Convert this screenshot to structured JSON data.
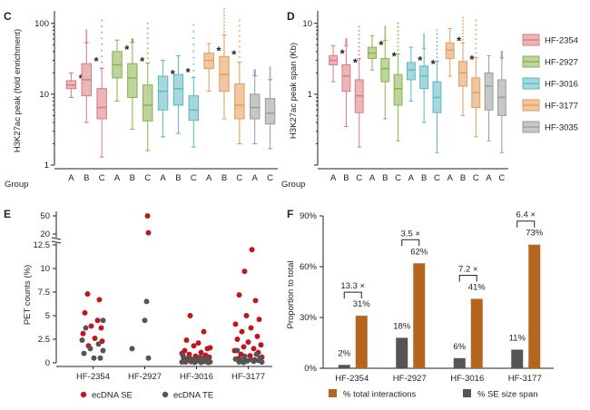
{
  "chart_data": [
    {
      "panel": "C",
      "type": "box",
      "ylabel": "H3K27ac peak (fold enrichment)",
      "yscale": "log",
      "ylim": [
        1,
        150
      ],
      "yticks": [
        {
          "v": 1,
          "label": "1"
        },
        {
          "v": 10,
          "label": "10"
        },
        {
          "v": 100,
          "label": "100"
        }
      ],
      "group_label": "Group",
      "categories": [
        "A",
        "B",
        "C",
        "A",
        "B",
        "C",
        "A",
        "B",
        "C",
        "A",
        "B",
        "C",
        "A",
        "C"
      ],
      "colors": [
        "#d97a80",
        "#d97a80",
        "#d97a80",
        "#88b04b",
        "#88b04b",
        "#88b04b",
        "#5bb7c2",
        "#5bb7c2",
        "#5bb7c2",
        "#e39a55",
        "#e39a55",
        "#e39a55",
        "#9a9a9a",
        "#9a9a9a"
      ],
      "boxes": [
        {
          "min": 9,
          "q1": 12,
          "median": 13.5,
          "q3": 15.5,
          "max": 20,
          "star": true
        },
        {
          "min": 4,
          "q1": 9.5,
          "median": 16,
          "q3": 27,
          "max": 80,
          "star": true
        },
        {
          "min": 1.3,
          "q1": 4.5,
          "median": 6.5,
          "q3": 12,
          "max": 110,
          "star": false
        },
        {
          "min": 8,
          "q1": 17,
          "median": 26,
          "q3": 40,
          "max": 58,
          "star": true
        },
        {
          "min": 3.2,
          "q1": 9,
          "median": 17,
          "q3": 27,
          "max": 60,
          "star": true
        },
        {
          "min": 1.6,
          "q1": 4.2,
          "median": 7,
          "q3": 13.5,
          "max": 100,
          "star": false
        },
        {
          "min": 2.5,
          "q1": 6,
          "median": 11,
          "q3": 18,
          "max": 30,
          "star": true
        },
        {
          "min": 2.8,
          "q1": 7,
          "median": 12,
          "q3": 19,
          "max": 35,
          "star": true
        },
        {
          "min": 1.8,
          "q1": 4.3,
          "median": 6,
          "q3": 9.5,
          "max": 95,
          "star": false
        },
        {
          "min": 11,
          "q1": 23,
          "median": 30,
          "q3": 38,
          "max": 52,
          "star": true
        },
        {
          "min": 4.5,
          "q1": 11,
          "median": 19,
          "q3": 34,
          "max": 160,
          "star": true
        },
        {
          "min": 2,
          "q1": 4.5,
          "median": 7,
          "q3": 14,
          "max": 110,
          "star": false
        },
        {
          "min": 2,
          "q1": 4.5,
          "median": 6.5,
          "q3": 10,
          "max": 22,
          "star": false
        },
        {
          "min": 1.7,
          "q1": 3.8,
          "median": 5.4,
          "q3": 8.7,
          "max": 24,
          "star": false
        }
      ]
    },
    {
      "panel": "D",
      "type": "box",
      "ylabel": "H3K27ac peak span (Kb)",
      "yscale": "log",
      "ylim": [
        0.1,
        15
      ],
      "yticks": [
        {
          "v": 1,
          "label": "1"
        },
        {
          "v": 10,
          "label": "10"
        }
      ],
      "group_label": "Group",
      "categories": [
        "A",
        "B",
        "C",
        "A",
        "B",
        "C",
        "A",
        "B",
        "C",
        "A",
        "B",
        "C",
        "A",
        "C"
      ],
      "colors": [
        "#d97a80",
        "#d97a80",
        "#d97a80",
        "#88b04b",
        "#88b04b",
        "#88b04b",
        "#5bb7c2",
        "#5bb7c2",
        "#5bb7c2",
        "#e39a55",
        "#e39a55",
        "#e39a55",
        "#9a9a9a",
        "#9a9a9a"
      ],
      "boxes": [
        {
          "min": 1.5,
          "q1": 2.6,
          "median": 3,
          "q3": 3.5,
          "max": 5,
          "star": true
        },
        {
          "min": 0.35,
          "q1": 1.1,
          "median": 1.8,
          "q3": 2.6,
          "max": 6,
          "star": true
        },
        {
          "min": 0.18,
          "q1": 0.55,
          "median": 0.95,
          "q3": 1.6,
          "max": 9,
          "star": false
        },
        {
          "min": 2.2,
          "q1": 3.2,
          "median": 3.8,
          "q3": 4.6,
          "max": 7,
          "star": true
        },
        {
          "min": 0.45,
          "q1": 1.5,
          "median": 2.3,
          "q3": 3.2,
          "max": 9,
          "star": true
        },
        {
          "min": 0.22,
          "q1": 0.7,
          "median": 1.2,
          "q3": 1.9,
          "max": 10,
          "star": false
        },
        {
          "min": 0.8,
          "q1": 1.6,
          "median": 2.2,
          "q3": 2.8,
          "max": 5,
          "star": true
        },
        {
          "min": 0.4,
          "q1": 1.2,
          "median": 1.8,
          "q3": 2.5,
          "max": 7,
          "star": true
        },
        {
          "min": 0.15,
          "q1": 0.55,
          "median": 0.9,
          "q3": 1.5,
          "max": 8,
          "star": false
        },
        {
          "min": 1.8,
          "q1": 3.2,
          "median": 4.2,
          "q3": 5.3,
          "max": 9,
          "star": true
        },
        {
          "min": 0.5,
          "q1": 1.3,
          "median": 2,
          "q3": 2.9,
          "max": 12,
          "star": true
        },
        {
          "min": 0.25,
          "q1": 0.65,
          "median": 1.05,
          "q3": 1.7,
          "max": 11,
          "star": false
        },
        {
          "min": 0.22,
          "q1": 0.6,
          "median": 1.3,
          "q3": 2,
          "max": 3.5,
          "star": false
        },
        {
          "min": 0.15,
          "q1": 0.5,
          "median": 0.9,
          "q3": 1.6,
          "max": 4,
          "star": false
        }
      ],
      "legend": [
        {
          "label": "HF-2354",
          "color": "#d97a80"
        },
        {
          "label": "HF-2927",
          "color": "#88b04b"
        },
        {
          "label": "HF-3016",
          "color": "#5bb7c2"
        },
        {
          "label": "HF-3177",
          "color": "#e39a55"
        },
        {
          "label": "HF-3035",
          "color": "#9a9a9a"
        }
      ]
    },
    {
      "panel": "E",
      "type": "scatter",
      "ylabel": "PET counts (%)",
      "categories": [
        "HF-2354",
        "HF-2927",
        "HF-3016",
        "HF-3177"
      ],
      "yticks_lower": [
        {
          "v": 0,
          "label": "0"
        },
        {
          "v": 2.5,
          "label": "2.5"
        },
        {
          "v": 5,
          "label": "5"
        },
        {
          "v": 7.5,
          "label": "7.5"
        },
        {
          "v": 10,
          "label": "10"
        },
        {
          "v": 12.5,
          "label": "12.5"
        }
      ],
      "yticks_upper": [
        {
          "v": 20,
          "label": "20"
        },
        {
          "v": 50,
          "label": "50"
        }
      ],
      "axis_break": [
        12.7,
        15
      ],
      "series": [
        {
          "name": "ecDNA SE",
          "color": "#c0161e",
          "points": [
            {
              "x": 0,
              "y": 7.3,
              "j": -6
            },
            {
              "x": 0,
              "y": 6.7,
              "j": 7
            },
            {
              "x": 0,
              "y": 5.3,
              "j": -9
            },
            {
              "x": 0,
              "y": 4.5,
              "j": 5
            },
            {
              "x": 0,
              "y": 3.9,
              "j": -2
            },
            {
              "x": 0,
              "y": 3.7,
              "j": 9
            },
            {
              "x": 0,
              "y": 3.1,
              "j": -11
            },
            {
              "x": 0,
              "y": 2.6,
              "j": 2
            },
            {
              "x": 0,
              "y": 2.3,
              "j": 10
            },
            {
              "x": 0,
              "y": 1.8,
              "j": -5
            },
            {
              "x": 1,
              "y": 50,
              "j": 3
            },
            {
              "x": 1,
              "y": 22,
              "j": 4
            },
            {
              "x": 2,
              "y": 5,
              "j": -7
            },
            {
              "x": 2,
              "y": 3.3,
              "j": 8
            },
            {
              "x": 2,
              "y": 2.4,
              "j": -11
            },
            {
              "x": 2,
              "y": 2.1,
              "j": 2
            },
            {
              "x": 2,
              "y": 1.8,
              "j": -3
            },
            {
              "x": 2,
              "y": 1.5,
              "j": 12
            },
            {
              "x": 2,
              "y": 1.3,
              "j": -13
            },
            {
              "x": 2,
              "y": 1.1,
              "j": 5
            },
            {
              "x": 2,
              "y": 0.9,
              "j": -8
            },
            {
              "x": 2,
              "y": 0.8,
              "j": 10
            },
            {
              "x": 2,
              "y": 0.7,
              "j": -1
            },
            {
              "x": 2,
              "y": 0.6,
              "j": 14
            },
            {
              "x": 2,
              "y": 0.5,
              "j": -14
            },
            {
              "x": 2,
              "y": 0.45,
              "j": 7
            },
            {
              "x": 2,
              "y": 0.4,
              "j": -6
            },
            {
              "x": 2,
              "y": 0.35,
              "j": 3
            },
            {
              "x": 2,
              "y": 0.3,
              "j": -10
            },
            {
              "x": 2,
              "y": 0.25,
              "j": 11
            },
            {
              "x": 2,
              "y": 0.2,
              "j": -4
            },
            {
              "x": 2,
              "y": 0.15,
              "j": 8
            },
            {
              "x": 2,
              "y": 0.1,
              "j": -12
            },
            {
              "x": 2,
              "y": 1.6,
              "j": 15
            },
            {
              "x": 2,
              "y": 1.0,
              "j": -16
            },
            {
              "x": 2,
              "y": 0.55,
              "j": 0
            },
            {
              "x": 3,
              "y": 12,
              "j": 4
            },
            {
              "x": 3,
              "y": 9.7,
              "j": -4
            },
            {
              "x": 3,
              "y": 7.2,
              "j": -10
            },
            {
              "x": 3,
              "y": 6.6,
              "j": 8
            },
            {
              "x": 3,
              "y": 5,
              "j": -2
            },
            {
              "x": 3,
              "y": 4.6,
              "j": 12
            },
            {
              "x": 3,
              "y": 4.1,
              "j": -14
            },
            {
              "x": 3,
              "y": 3.7,
              "j": 3
            },
            {
              "x": 3,
              "y": 3.3,
              "j": -7
            },
            {
              "x": 3,
              "y": 2.8,
              "j": 10
            },
            {
              "x": 3,
              "y": 2.5,
              "j": -12
            },
            {
              "x": 3,
              "y": 2.2,
              "j": 0
            },
            {
              "x": 3,
              "y": 1.9,
              "j": 14
            },
            {
              "x": 3,
              "y": 1.7,
              "j": -5
            },
            {
              "x": 3,
              "y": 1.5,
              "j": 6
            },
            {
              "x": 3,
              "y": 1.3,
              "j": -15
            },
            {
              "x": 3,
              "y": 1.1,
              "j": 11
            },
            {
              "x": 3,
              "y": 0.9,
              "j": -8
            },
            {
              "x": 3,
              "y": 0.75,
              "j": 2
            },
            {
              "x": 3,
              "y": 0.6,
              "j": 15
            },
            {
              "x": 3,
              "y": 0.45,
              "j": -11
            },
            {
              "x": 3,
              "y": 0.3,
              "j": 7
            },
            {
              "x": 3,
              "y": 0.2,
              "j": -3
            }
          ]
        },
        {
          "name": "ecDNA TE",
          "color": "#555555",
          "points": [
            {
              "x": 0,
              "y": 4.5,
              "j": 11
            },
            {
              "x": 0,
              "y": 3.7,
              "j": -8
            },
            {
              "x": 0,
              "y": 2.4,
              "j": -12
            },
            {
              "x": 0,
              "y": 2.0,
              "j": 6
            },
            {
              "x": 0,
              "y": 1.5,
              "j": -3
            },
            {
              "x": 0,
              "y": 1.3,
              "j": 11
            },
            {
              "x": 0,
              "y": 1.0,
              "j": -10
            },
            {
              "x": 0,
              "y": 0.5,
              "j": 1
            },
            {
              "x": 0,
              "y": 0.5,
              "j": 8
            },
            {
              "x": 1,
              "y": 6.5,
              "j": 2
            },
            {
              "x": 1,
              "y": 4.5,
              "j": 0
            },
            {
              "x": 1,
              "y": 1.5,
              "j": -14
            },
            {
              "x": 1,
              "y": 0.5,
              "j": 4
            },
            {
              "x": 2,
              "y": 0.8,
              "j": -15
            },
            {
              "x": 2,
              "y": 0.6,
              "j": 4
            },
            {
              "x": 2,
              "y": 0.5,
              "j": -9
            },
            {
              "x": 2,
              "y": 0.4,
              "j": 12
            },
            {
              "x": 2,
              "y": 0.35,
              "j": -3
            },
            {
              "x": 2,
              "y": 0.3,
              "j": 7
            },
            {
              "x": 2,
              "y": 0.25,
              "j": -12
            },
            {
              "x": 2,
              "y": 0.2,
              "j": 1
            },
            {
              "x": 2,
              "y": 0.15,
              "j": 10
            },
            {
              "x": 2,
              "y": 0.12,
              "j": -6
            },
            {
              "x": 2,
              "y": 0.1,
              "j": 15
            },
            {
              "x": 2,
              "y": 0.08,
              "j": -16
            },
            {
              "x": 2,
              "y": 0.05,
              "j": 5
            },
            {
              "x": 2,
              "y": 0.05,
              "j": -2
            },
            {
              "x": 2,
              "y": 0.04,
              "j": 13
            },
            {
              "x": 3,
              "y": 1.3,
              "j": -12
            },
            {
              "x": 3,
              "y": 0.9,
              "j": 9
            },
            {
              "x": 3,
              "y": 0.7,
              "j": -4
            },
            {
              "x": 3,
              "y": 0.5,
              "j": 13
            },
            {
              "x": 3,
              "y": 0.4,
              "j": -14
            },
            {
              "x": 3,
              "y": 0.35,
              "j": 3
            },
            {
              "x": 3,
              "y": 0.3,
              "j": -8
            },
            {
              "x": 3,
              "y": 0.25,
              "j": 11
            },
            {
              "x": 3,
              "y": 0.2,
              "j": -1
            },
            {
              "x": 3,
              "y": 0.15,
              "j": 6
            },
            {
              "x": 3,
              "y": 0.1,
              "j": -10
            },
            {
              "x": 3,
              "y": 0.08,
              "j": 15
            },
            {
              "x": 3,
              "y": 0.05,
              "j": -5
            }
          ]
        }
      ]
    },
    {
      "panel": "F",
      "type": "bar",
      "ylabel": "Proportion to total",
      "ylim": [
        0,
        90
      ],
      "yticks": [
        {
          "v": 0,
          "label": "0%"
        },
        {
          "v": 30,
          "label": "30%"
        },
        {
          "v": 60,
          "label": "60%"
        },
        {
          "v": 90,
          "label": "90%"
        }
      ],
      "categories": [
        "HF-2354",
        "HF-2927",
        "HF-3016",
        "HF-3177"
      ],
      "series": [
        {
          "name": "% SE size span",
          "color": "#555555",
          "values": [
            2,
            18,
            6,
            11
          ],
          "labels": [
            "2%",
            "18%",
            "6%",
            "11%"
          ]
        },
        {
          "name": "% total interactions",
          "color": "#b5651d",
          "values": [
            31,
            62,
            41,
            73
          ],
          "labels": [
            "31%",
            "62%",
            "41%",
            "73%"
          ]
        }
      ],
      "fold_labels": [
        "13.3 ×",
        "3.5 ×",
        "7.2 ×",
        "6.4 ×"
      ],
      "legend_order": [
        "% total interactions",
        "% SE size span"
      ]
    }
  ]
}
